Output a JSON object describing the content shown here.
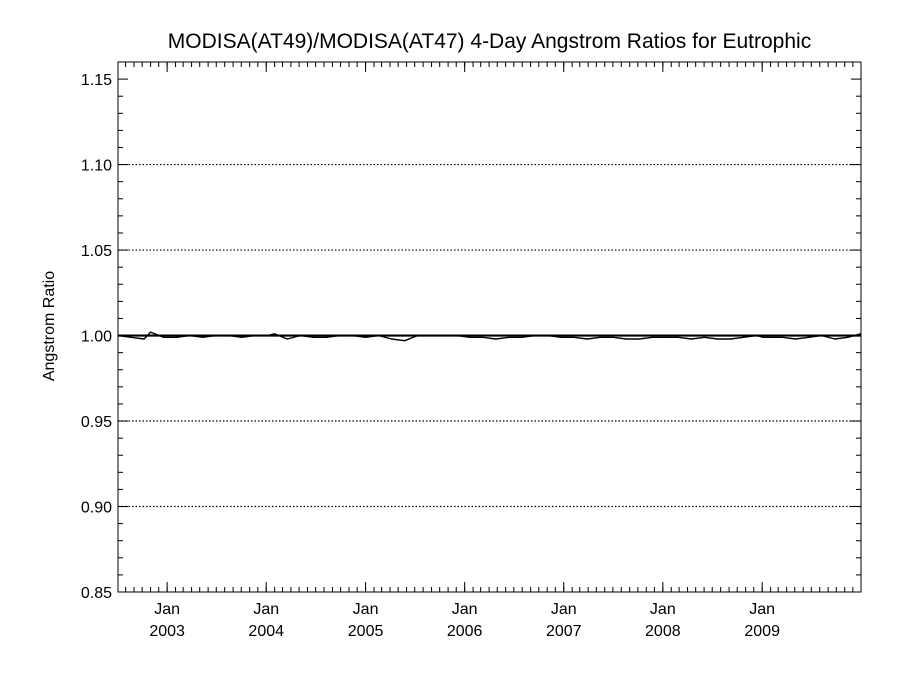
{
  "chart_data": {
    "type": "line",
    "title": "MODISA(AT49)/MODISA(AT47) 4-Day Angstrom Ratios for Eutrophic",
    "ylabel": "Angstrom Ratio",
    "xlabel": "",
    "ylim": [
      0.85,
      1.16
    ],
    "xlim": [
      "2002-07-04",
      "2009-12-31"
    ],
    "y_ticks": [
      "0.85",
      "0.90",
      "0.95",
      "1.00",
      "1.05",
      "1.10",
      "1.15"
    ],
    "y_gridlines": [
      0.9,
      0.95,
      1.0,
      1.05,
      1.1
    ],
    "grid_style": "dotted",
    "x_ticks": [
      {
        "date": "2003-01-01",
        "month": "Jan",
        "year": "2003"
      },
      {
        "date": "2004-01-01",
        "month": "Jan",
        "year": "2004"
      },
      {
        "date": "2005-01-01",
        "month": "Jan",
        "year": "2005"
      },
      {
        "date": "2006-01-01",
        "month": "Jan",
        "year": "2006"
      },
      {
        "date": "2007-01-01",
        "month": "Jan",
        "year": "2007"
      },
      {
        "date": "2008-01-01",
        "month": "Jan",
        "year": "2008"
      },
      {
        "date": "2009-01-01",
        "month": "Jan",
        "year": "2009"
      }
    ],
    "reference_line": 1.0,
    "series": [
      {
        "x": [
          "2002-07-04",
          "2002-08-21",
          "2002-10-08",
          "2002-11-01",
          "2002-12-19",
          "2003-02-05",
          "2003-03-25",
          "2003-05-12",
          "2003-06-29",
          "2003-08-16",
          "2003-10-03",
          "2003-11-20",
          "2004-01-07",
          "2004-01-31",
          "2004-03-19",
          "2004-05-06",
          "2004-06-23",
          "2004-08-10",
          "2004-09-27",
          "2004-11-14",
          "2005-01-01",
          "2005-02-18",
          "2005-04-07",
          "2005-05-25",
          "2005-07-12",
          "2005-08-29",
          "2005-10-16",
          "2005-12-03",
          "2006-01-20",
          "2006-03-09",
          "2006-04-26",
          "2006-06-13",
          "2006-07-31",
          "2006-09-17",
          "2006-11-04",
          "2006-12-22",
          "2007-02-08",
          "2007-03-28",
          "2007-05-15",
          "2007-07-02",
          "2007-08-19",
          "2007-10-06",
          "2007-11-23",
          "2008-01-10",
          "2008-02-27",
          "2008-04-15",
          "2008-06-02",
          "2008-07-20",
          "2008-09-06",
          "2008-10-24",
          "2008-12-11",
          "2009-01-04",
          "2009-01-28",
          "2009-03-17",
          "2009-05-04",
          "2009-06-21",
          "2009-08-08",
          "2009-09-25",
          "2009-11-12",
          "2009-12-30"
        ],
        "y": [
          1.0,
          0.999,
          0.998,
          1.002,
          0.999,
          0.999,
          1.0,
          0.999,
          1.0,
          1.0,
          0.999,
          1.0,
          1.0,
          1.001,
          0.998,
          1.0,
          0.999,
          0.999,
          1.0,
          1.0,
          0.999,
          1.0,
          0.998,
          0.997,
          1.0,
          1.0,
          1.0,
          1.0,
          0.999,
          0.999,
          0.998,
          0.999,
          0.999,
          1.0,
          1.0,
          0.999,
          0.999,
          0.998,
          0.999,
          0.999,
          0.998,
          0.998,
          0.999,
          0.999,
          0.999,
          0.998,
          0.999,
          0.998,
          0.998,
          0.999,
          1.0,
          0.999,
          0.999,
          0.999,
          0.998,
          0.999,
          1.0,
          0.998,
          0.999,
          1.001
        ]
      }
    ]
  }
}
